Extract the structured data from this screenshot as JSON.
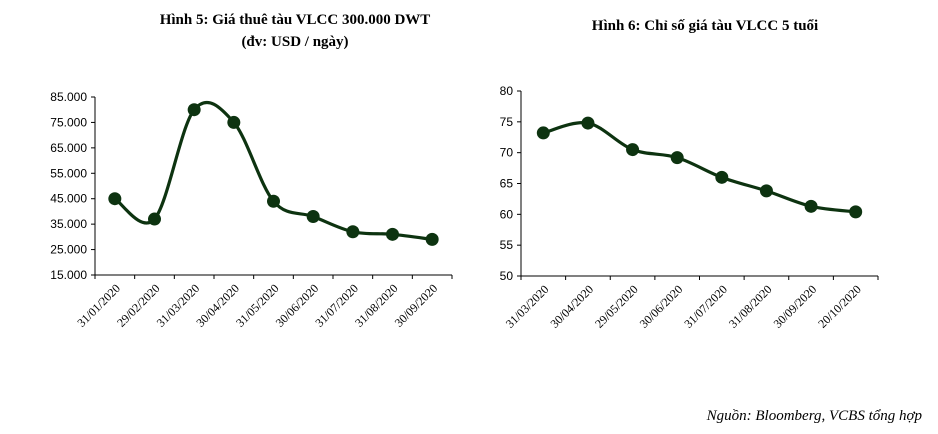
{
  "chart_data": [
    {
      "type": "line",
      "title": "Hình 5: Giá thuê tàu VLCC 300.000 DWT",
      "subtitle": "(đv: USD / ngày)",
      "xlabel": "",
      "ylabel": "",
      "categories": [
        "31/01/2020",
        "29/02/2020",
        "31/03/2020",
        "30/04/2020",
        "31/05/2020",
        "30/06/2020",
        "31/07/2020",
        "31/08/2020",
        "30/09/2020"
      ],
      "series": [
        {
          "values": [
            45000,
            37000,
            80000,
            75000,
            44000,
            38000,
            32000,
            31000,
            29000
          ]
        }
      ],
      "ylim": [
        15000,
        85000
      ],
      "yticks": [
        15000,
        25000,
        35000,
        45000,
        55000,
        65000,
        75000,
        85000
      ],
      "ytick_labels": [
        "15.000",
        "25.000",
        "35.000",
        "45.000",
        "55.000",
        "65.000",
        "75.000",
        "85.000"
      ],
      "grid": false,
      "legend": "none",
      "smooth": true,
      "color": "#0d3310"
    },
    {
      "type": "line",
      "title": "Hình 6: Chỉ số giá tàu VLCC 5 tuổi",
      "xlabel": "",
      "ylabel": "",
      "categories": [
        "31/03/2020",
        "30/04/2020",
        "29/05/2020",
        "30/06/2020",
        "31/07/2020",
        "31/08/2020",
        "30/09/2020",
        "20/10/2020"
      ],
      "series": [
        {
          "values": [
            73.2,
            74.8,
            70.5,
            69.2,
            66.0,
            63.8,
            61.3,
            60.4
          ]
        }
      ],
      "ylim": [
        50,
        80
      ],
      "yticks": [
        50,
        55,
        60,
        65,
        70,
        75,
        80
      ],
      "ytick_labels": [
        "50",
        "55",
        "60",
        "65",
        "70",
        "75",
        "80"
      ],
      "grid": false,
      "legend": "none",
      "smooth": true,
      "color": "#0d3310"
    }
  ],
  "source": "Nguồn: Bloomberg, VCBS tổng hợp"
}
